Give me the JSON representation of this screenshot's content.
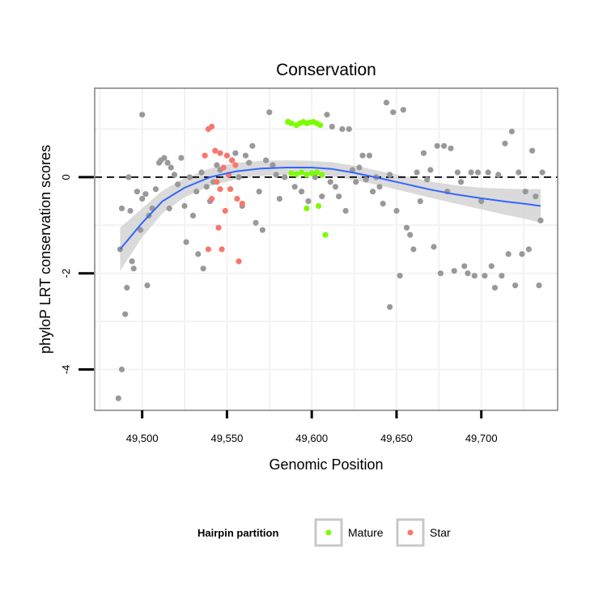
{
  "chart_data": {
    "type": "scatter",
    "title": "Conservation",
    "xlabel": "Genomic Position",
    "ylabel": "phyloP LRT conservation scores",
    "xlim": [
      49472,
      49745
    ],
    "ylim": [
      -4.85,
      1.85
    ],
    "xticks": [
      49500,
      49550,
      49600,
      49650,
      49700
    ],
    "xtick_labels": [
      "49,500",
      "49,550",
      "49,600",
      "49,650",
      "49,700"
    ],
    "yticks": [
      -4,
      -2,
      0
    ],
    "ytick_labels": [
      "-4",
      "-2",
      "0"
    ],
    "reference_line": {
      "y": 0,
      "style": "dashed",
      "color": "#000000"
    },
    "grid": true,
    "colors": {
      "other": "#999999",
      "Mature": "#7CFC00",
      "Star": "#F8766D",
      "smooth": "#3366FF",
      "ribbon": "#D3D3D3",
      "panel_border": "#808080",
      "grid": "#F2F2F2"
    },
    "legend": {
      "title": "Hairpin partition",
      "position": "bottom",
      "entries": [
        {
          "label": "Mature",
          "color": "#7CFC00"
        },
        {
          "label": "Star",
          "color": "#F8766D"
        }
      ]
    },
    "smooth": [
      {
        "x": 49487,
        "y": -1.5,
        "lo": -1.95,
        "hi": -1.05
      },
      {
        "x": 49500,
        "y": -0.95,
        "lo": -1.25,
        "hi": -0.65
      },
      {
        "x": 49512,
        "y": -0.5,
        "lo": -0.75,
        "hi": -0.28
      },
      {
        "x": 49525,
        "y": -0.22,
        "lo": -0.42,
        "hi": -0.02
      },
      {
        "x": 49540,
        "y": 0.0,
        "lo": -0.18,
        "hi": 0.18
      },
      {
        "x": 49555,
        "y": 0.12,
        "lo": -0.05,
        "hi": 0.3
      },
      {
        "x": 49570,
        "y": 0.18,
        "lo": 0.02,
        "hi": 0.34
      },
      {
        "x": 49585,
        "y": 0.2,
        "lo": 0.05,
        "hi": 0.35
      },
      {
        "x": 49600,
        "y": 0.2,
        "lo": 0.05,
        "hi": 0.34
      },
      {
        "x": 49612,
        "y": 0.17,
        "lo": 0.02,
        "hi": 0.31
      },
      {
        "x": 49625,
        "y": 0.09,
        "lo": -0.06,
        "hi": 0.24
      },
      {
        "x": 49640,
        "y": -0.02,
        "lo": -0.17,
        "hi": 0.13
      },
      {
        "x": 49655,
        "y": -0.14,
        "lo": -0.3,
        "hi": 0.02
      },
      {
        "x": 49670,
        "y": -0.26,
        "lo": -0.43,
        "hi": -0.09
      },
      {
        "x": 49685,
        "y": -0.36,
        "lo": -0.55,
        "hi": -0.17
      },
      {
        "x": 49700,
        "y": -0.44,
        "lo": -0.67,
        "hi": -0.22
      },
      {
        "x": 49715,
        "y": -0.51,
        "lo": -0.79,
        "hi": -0.24
      },
      {
        "x": 49725,
        "y": -0.55,
        "lo": -0.86,
        "hi": -0.25
      },
      {
        "x": 49735,
        "y": -0.6,
        "lo": -0.95,
        "hi": -0.25
      }
    ],
    "series": [
      {
        "name": "Mature",
        "points": [
          [
            49586,
            1.15
          ],
          [
            49588,
            1.12
          ],
          [
            49591,
            1.08
          ],
          [
            49593,
            1.12
          ],
          [
            49595,
            1.15
          ],
          [
            49597,
            1.12
          ],
          [
            49599,
            1.14
          ],
          [
            49601,
            1.15
          ],
          [
            49603,
            1.12
          ],
          [
            49605,
            1.08
          ],
          [
            49588,
            0.08
          ],
          [
            49591,
            0.06
          ],
          [
            49594,
            0.1
          ],
          [
            49597,
            0.05
          ],
          [
            49600,
            0.08
          ],
          [
            49603,
            0.1
          ],
          [
            49606,
            0.05
          ],
          [
            49597,
            -0.65
          ],
          [
            49604,
            -0.6
          ],
          [
            49608,
            -1.2
          ]
        ]
      },
      {
        "name": "Star",
        "points": [
          [
            49539,
            1.0
          ],
          [
            49541,
            1.05
          ],
          [
            49537,
            0.45
          ],
          [
            49543,
            0.55
          ],
          [
            49546,
            0.5
          ],
          [
            49550,
            0.45
          ],
          [
            49553,
            0.35
          ],
          [
            49548,
            0.2
          ],
          [
            49551,
            0.05
          ],
          [
            49555,
            0.25
          ],
          [
            49544,
            -0.1
          ],
          [
            49546,
            -0.25
          ],
          [
            49552,
            -0.25
          ],
          [
            49541,
            -0.45
          ],
          [
            49556,
            -0.45
          ],
          [
            49549,
            -0.7
          ],
          [
            49545,
            -1.05
          ],
          [
            49539,
            -1.5
          ],
          [
            49547,
            -1.5
          ],
          [
            49557,
            -1.75
          ],
          [
            49559,
            -0.55
          ]
        ]
      },
      {
        "name": "Other",
        "points": [
          [
            49486,
            -4.6
          ],
          [
            49488,
            -4.0
          ],
          [
            49490,
            -2.85
          ],
          [
            49491,
            -2.3
          ],
          [
            49494,
            -1.75
          ],
          [
            49495,
            -1.9
          ],
          [
            49487,
            -1.5
          ],
          [
            49488,
            -0.65
          ],
          [
            49493,
            -0.7
          ],
          [
            49492,
            0.0
          ],
          [
            49497,
            -0.3
          ],
          [
            49499,
            -1.1
          ],
          [
            49500,
            -0.45
          ],
          [
            49502,
            -0.35
          ],
          [
            49503,
            -2.25
          ],
          [
            49504,
            -0.8
          ],
          [
            49506,
            -0.65
          ],
          [
            49508,
            -0.25
          ],
          [
            49510,
            0.3
          ],
          [
            49511,
            0.35
          ],
          [
            49513,
            0.4
          ],
          [
            49515,
            0.3
          ],
          [
            49517,
            0.2
          ],
          [
            49516,
            -0.65
          ],
          [
            49519,
            0.05
          ],
          [
            49521,
            -0.15
          ],
          [
            49523,
            0.4
          ],
          [
            49525,
            -0.6
          ],
          [
            49526,
            -1.35
          ],
          [
            49528,
            0.0
          ],
          [
            49530,
            -0.8
          ],
          [
            49532,
            -0.3
          ],
          [
            49533,
            -1.6
          ],
          [
            49535,
            0.1
          ],
          [
            49536,
            -1.9
          ],
          [
            49538,
            -0.2
          ],
          [
            49540,
            -0.5
          ],
          [
            49542,
            -0.1
          ],
          [
            49544,
            0.25
          ],
          [
            49546,
            0.15
          ],
          [
            49500,
            1.3
          ],
          [
            49553,
            0.35
          ],
          [
            49555,
            0.5
          ],
          [
            49557,
            0.0
          ],
          [
            49559,
            -0.6
          ],
          [
            49561,
            0.45
          ],
          [
            49563,
            0.3
          ],
          [
            49565,
            0.65
          ],
          [
            49567,
            -0.95
          ],
          [
            49569,
            -0.3
          ],
          [
            49571,
            -1.1
          ],
          [
            49573,
            0.35
          ],
          [
            49575,
            1.35
          ],
          [
            49577,
            0.25
          ],
          [
            49579,
            0.05
          ],
          [
            49581,
            -0.45
          ],
          [
            49584,
            0.0
          ],
          [
            49586,
            1.15
          ],
          [
            49590,
            -0.2
          ],
          [
            49594,
            -0.3
          ],
          [
            49598,
            -0.5
          ],
          [
            49602,
            0.0
          ],
          [
            49606,
            -0.4
          ],
          [
            49609,
            1.3
          ],
          [
            49611,
            -0.1
          ],
          [
            49612,
            1.05
          ],
          [
            49614,
            -0.2
          ],
          [
            49616,
            -0.4
          ],
          [
            49618,
            1.0
          ],
          [
            49620,
            -0.7
          ],
          [
            49622,
            1.0
          ],
          [
            49624,
            0.15
          ],
          [
            49626,
            -0.1
          ],
          [
            49628,
            0.2
          ],
          [
            49630,
            0.45
          ],
          [
            49632,
            -0.05
          ],
          [
            49634,
            0.45
          ],
          [
            49636,
            -0.3
          ],
          [
            49638,
            0.0
          ],
          [
            49640,
            -0.2
          ],
          [
            49642,
            -0.55
          ],
          [
            49644,
            1.55
          ],
          [
            49646,
            0.05
          ],
          [
            49648,
            1.35
          ],
          [
            49646,
            -2.7
          ],
          [
            49650,
            -0.7
          ],
          [
            49652,
            -2.05
          ],
          [
            49654,
            1.4
          ],
          [
            49656,
            -1.05
          ],
          [
            49658,
            -1.2
          ],
          [
            49660,
            -1.5
          ],
          [
            49662,
            0.1
          ],
          [
            49664,
            -0.5
          ],
          [
            49666,
            0.5
          ],
          [
            49668,
            -0.05
          ],
          [
            49670,
            0.15
          ],
          [
            49672,
            -1.45
          ],
          [
            49674,
            0.65
          ],
          [
            49676,
            -2.0
          ],
          [
            49678,
            0.65
          ],
          [
            49680,
            -0.3
          ],
          [
            49682,
            0.6
          ],
          [
            49684,
            -1.95
          ],
          [
            49686,
            0.1
          ],
          [
            49688,
            -0.1
          ],
          [
            49690,
            -1.85
          ],
          [
            49692,
            -2.0
          ],
          [
            49694,
            0.1
          ],
          [
            49696,
            -2.05
          ],
          [
            49698,
            0.1
          ],
          [
            49700,
            -0.5
          ],
          [
            49702,
            -2.05
          ],
          [
            49704,
            0.1
          ],
          [
            49706,
            -1.85
          ],
          [
            49708,
            -2.3
          ],
          [
            49710,
            0.05
          ],
          [
            49712,
            -2.05
          ],
          [
            49714,
            0.7
          ],
          [
            49716,
            -1.6
          ],
          [
            49718,
            0.95
          ],
          [
            49720,
            -2.25
          ],
          [
            49722,
            0.1
          ],
          [
            49724,
            -1.6
          ],
          [
            49726,
            -0.3
          ],
          [
            49728,
            -1.5
          ],
          [
            49730,
            0.55
          ],
          [
            49732,
            -0.4
          ],
          [
            49734,
            -2.25
          ],
          [
            49736,
            0.1
          ],
          [
            49735,
            -0.9
          ]
        ]
      }
    ]
  }
}
